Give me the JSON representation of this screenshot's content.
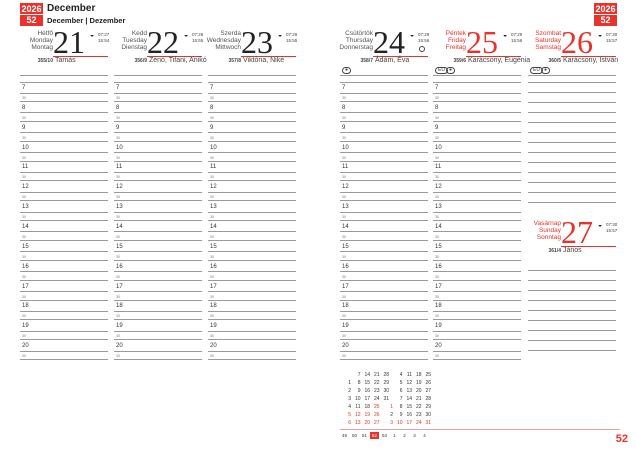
{
  "header": {
    "year": "2026",
    "week": "52",
    "month": "December",
    "month_translations": "December | Dezember"
  },
  "days": [
    {
      "names": [
        "Hétfő",
        "Monday",
        "Montag"
      ],
      "day": "21",
      "sunrise": "07:27",
      "sunset": "15:54",
      "count": "355/10",
      "nameday": "Tamás",
      "red": false,
      "moon": []
    },
    {
      "names": [
        "Kedd",
        "Tuesday",
        "Dienstag"
      ],
      "day": "22",
      "sunrise": "07:28",
      "sunset": "15:55",
      "count": "356/9",
      "nameday": "Zénó, Tifani, Anikó",
      "red": false,
      "moon": []
    },
    {
      "names": [
        "Szerda",
        "Wednesday",
        "Mittwoch"
      ],
      "day": "23",
      "sunrise": "07:29",
      "sunset": "15:55",
      "count": "357/8",
      "nameday": "Viktória, Niké",
      "red": false,
      "moon": []
    },
    {
      "names": [
        "Csütörtök",
        "Thursday",
        "Donnerstag"
      ],
      "day": "24",
      "sunrise": "07:29",
      "sunset": "15:56",
      "count": "358/7",
      "nameday": "Ádám, Éva",
      "red": false,
      "moon": [
        "●"
      ],
      "full_moon": true
    },
    {
      "names": [
        "Péntek",
        "Friday",
        "Freitag"
      ],
      "day": "25",
      "sunrise": "07:29",
      "sunset": "15:56",
      "count": "359/6",
      "nameday": "Karácsony, Eugénia",
      "red": true,
      "moon": [
        "EU",
        "●"
      ]
    },
    {
      "names": [
        "Szombat",
        "Saturday",
        "Samstag"
      ],
      "day": "26",
      "sunrise": "07:30",
      "sunset": "15:57",
      "count": "360/5",
      "nameday": "Karácsony, István",
      "red": true,
      "moon": [
        "EU",
        "●"
      ]
    },
    {
      "names": [
        "Vasárnap",
        "Sunday",
        "Sonntag"
      ],
      "day": "27",
      "sunrise": "07:30",
      "sunset": "15:57",
      "count": "361/4",
      "nameday": "János",
      "red": true,
      "moon": []
    }
  ],
  "hours": [
    "7",
    "8",
    "9",
    "10",
    "11",
    "12",
    "13",
    "14",
    "15",
    "16",
    "17",
    "18",
    "19",
    "20"
  ],
  "half_label": "30",
  "mini_calendar": {
    "december": [
      [
        "",
        "7",
        "14",
        "21",
        "28"
      ],
      [
        "1",
        "8",
        "15",
        "22",
        "29"
      ],
      [
        "2",
        "9",
        "16",
        "23",
        "30"
      ],
      [
        "3",
        "10",
        "17",
        "24",
        "31"
      ],
      [
        "4",
        "11",
        "18",
        "25",
        ""
      ],
      [
        "5",
        "12",
        "19",
        "26",
        ""
      ],
      [
        "6",
        "13",
        "20",
        "27",
        ""
      ]
    ],
    "january": [
      [
        "4",
        "11",
        "18",
        "25"
      ],
      [
        "5",
        "12",
        "19",
        "26"
      ],
      [
        "6",
        "13",
        "20",
        "27"
      ],
      [
        "7",
        "14",
        "21",
        "28"
      ],
      [
        "1",
        "8",
        "15",
        "22",
        "29"
      ],
      [
        "2",
        "9",
        "16",
        "23",
        "30"
      ],
      [
        "3",
        "10",
        "17",
        "24",
        "31"
      ]
    ],
    "weeks": [
      "49",
      "50",
      "51",
      "52",
      "53",
      "1",
      "2",
      "3",
      "4"
    ],
    "current_week": "52"
  },
  "page_number": "52",
  "colors": {
    "accent": "#e8322b"
  }
}
